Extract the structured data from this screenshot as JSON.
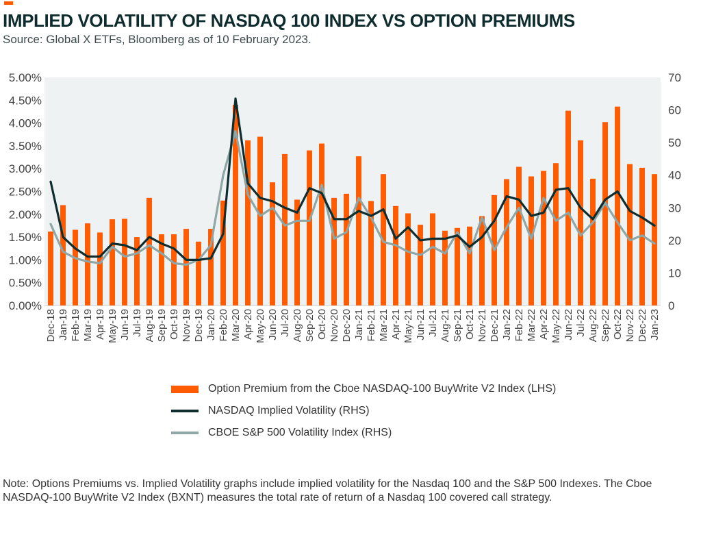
{
  "header": {
    "title": "IMPLIED VOLATILITY OF NASDAQ 100 INDEX VS OPTION PREMIUMS",
    "subtitle": "Source: Global X ETFs, Bloomberg as of 10 February 2023.",
    "accent_color": "#ff5b00"
  },
  "legend": {
    "premium": "Option Premium from the Cboe NASDAQ-100 BuyWrite V2 Index (LHS)",
    "nasdaq_iv": "NASDAQ Implied Volatility (RHS)",
    "cboe_vix": "CBOE S&P 500 Volatility Index (RHS)"
  },
  "note": "Note: Options Premiums vs. Implied Volatility graphs include implied volatility for the Nasdaq 100 and the S&P 500 Indexes. The Cboe NASDAQ-100 BuyWrite V2 Index (BXNT) measures the total rate of return of a Nasdaq 100 covered call strategy.",
  "chart_data": {
    "type": "bar",
    "title": "IMPLIED VOLATILITY OF NASDAQ 100 INDEX VS OPTION PREMIUMS",
    "xlabel": "",
    "ylabel": "",
    "ylim": [
      0,
      0.05
    ],
    "y2lim": [
      0,
      70
    ],
    "yticks": [
      "0.00%",
      "0.50%",
      "1.00%",
      "1.50%",
      "2.00%",
      "2.50%",
      "3.00%",
      "3.50%",
      "4.00%",
      "4.50%",
      "5.00%"
    ],
    "y2ticks": [
      "0",
      "10",
      "20",
      "30",
      "40",
      "50",
      "60",
      "70"
    ],
    "grid": false,
    "legend_position": "bottom",
    "categories": [
      "Dec-18",
      "Jan-19",
      "Feb-19",
      "Mar-19",
      "Apr-19",
      "May-19",
      "Jun-19",
      "Jul-19",
      "Aug-19",
      "Sep-19",
      "Oct-19",
      "Nov-19",
      "Dec-19",
      "Jan-20",
      "Feb-20",
      "Mar-20",
      "Apr-20",
      "May-20",
      "Jun-20",
      "Jul-20",
      "Aug-20",
      "Sep-20",
      "Oct-20",
      "Nov-20",
      "Dec-20",
      "Jan-21",
      "Feb-21",
      "Mar-21",
      "Apr-21",
      "May-21",
      "Jun-21",
      "Jul-21",
      "Aug-21",
      "Sep-21",
      "Oct-21",
      "Nov-21",
      "Dec-21",
      "Jan-22",
      "Feb-22",
      "Mar-22",
      "Apr-22",
      "May-22",
      "Jun-22",
      "Jul-22",
      "Aug-22",
      "Sep-22",
      "Oct-22",
      "Nov-22",
      "Dec-22",
      "Jan-23"
    ],
    "series": [
      {
        "name": "Option Premium from the Cboe NASDAQ-100 BuyWrite V2 Index (LHS)",
        "type": "bar",
        "axis": "left",
        "color": "#ff5b00",
        "values": [
          0.0162,
          0.022,
          0.0166,
          0.018,
          0.016,
          0.0189,
          0.019,
          0.015,
          0.0236,
          0.0156,
          0.0156,
          0.0168,
          0.014,
          0.0168,
          0.023,
          0.044,
          0.0362,
          0.037,
          0.027,
          0.0332,
          0.0232,
          0.034,
          0.0355,
          0.0236,
          0.0245,
          0.0327,
          0.0229,
          0.0288,
          0.0218,
          0.0202,
          0.0177,
          0.0202,
          0.0164,
          0.017,
          0.0173,
          0.0196,
          0.0242,
          0.0277,
          0.0304,
          0.0283,
          0.0295,
          0.0312,
          0.0427,
          0.0362,
          0.0278,
          0.0402,
          0.0436,
          0.031,
          0.0302,
          0.0288
        ]
      },
      {
        "name": "NASDAQ Implied Volatility (RHS)",
        "type": "line",
        "axis": "right",
        "color": "#0f2d2f",
        "values": [
          38,
          21,
          17.5,
          15,
          15,
          19,
          18.5,
          17,
          21,
          19,
          17.5,
          14,
          14,
          14.5,
          22,
          63.5,
          37.5,
          33,
          32,
          30,
          28.5,
          36,
          34.5,
          26.5,
          26.5,
          29,
          27.5,
          29.5,
          20.5,
          24,
          20,
          20.5,
          20.5,
          21.5,
          18,
          21,
          26,
          33.5,
          32.5,
          27.5,
          28.5,
          35.5,
          36,
          30,
          26.5,
          32.5,
          35,
          29,
          27,
          24.5
        ]
      },
      {
        "name": "CBOE S&P 500 Volatility Index (RHS)",
        "type": "line",
        "axis": "right",
        "color": "#8fa6a6",
        "values": [
          25,
          16.5,
          14.5,
          13.5,
          13,
          18,
          15,
          16,
          18.5,
          16,
          13,
          12.5,
          14,
          18.5,
          40,
          53.5,
          34,
          27.5,
          30,
          24.5,
          26,
          26,
          37,
          20.5,
          22.5,
          33,
          27,
          19.5,
          18.5,
          16.5,
          15.5,
          18,
          16,
          22.5,
          16,
          27,
          17,
          24,
          30,
          20.5,
          33,
          26,
          28.5,
          21.5,
          25.5,
          31.5,
          25.5,
          20,
          21.5,
          19
        ]
      }
    ]
  }
}
